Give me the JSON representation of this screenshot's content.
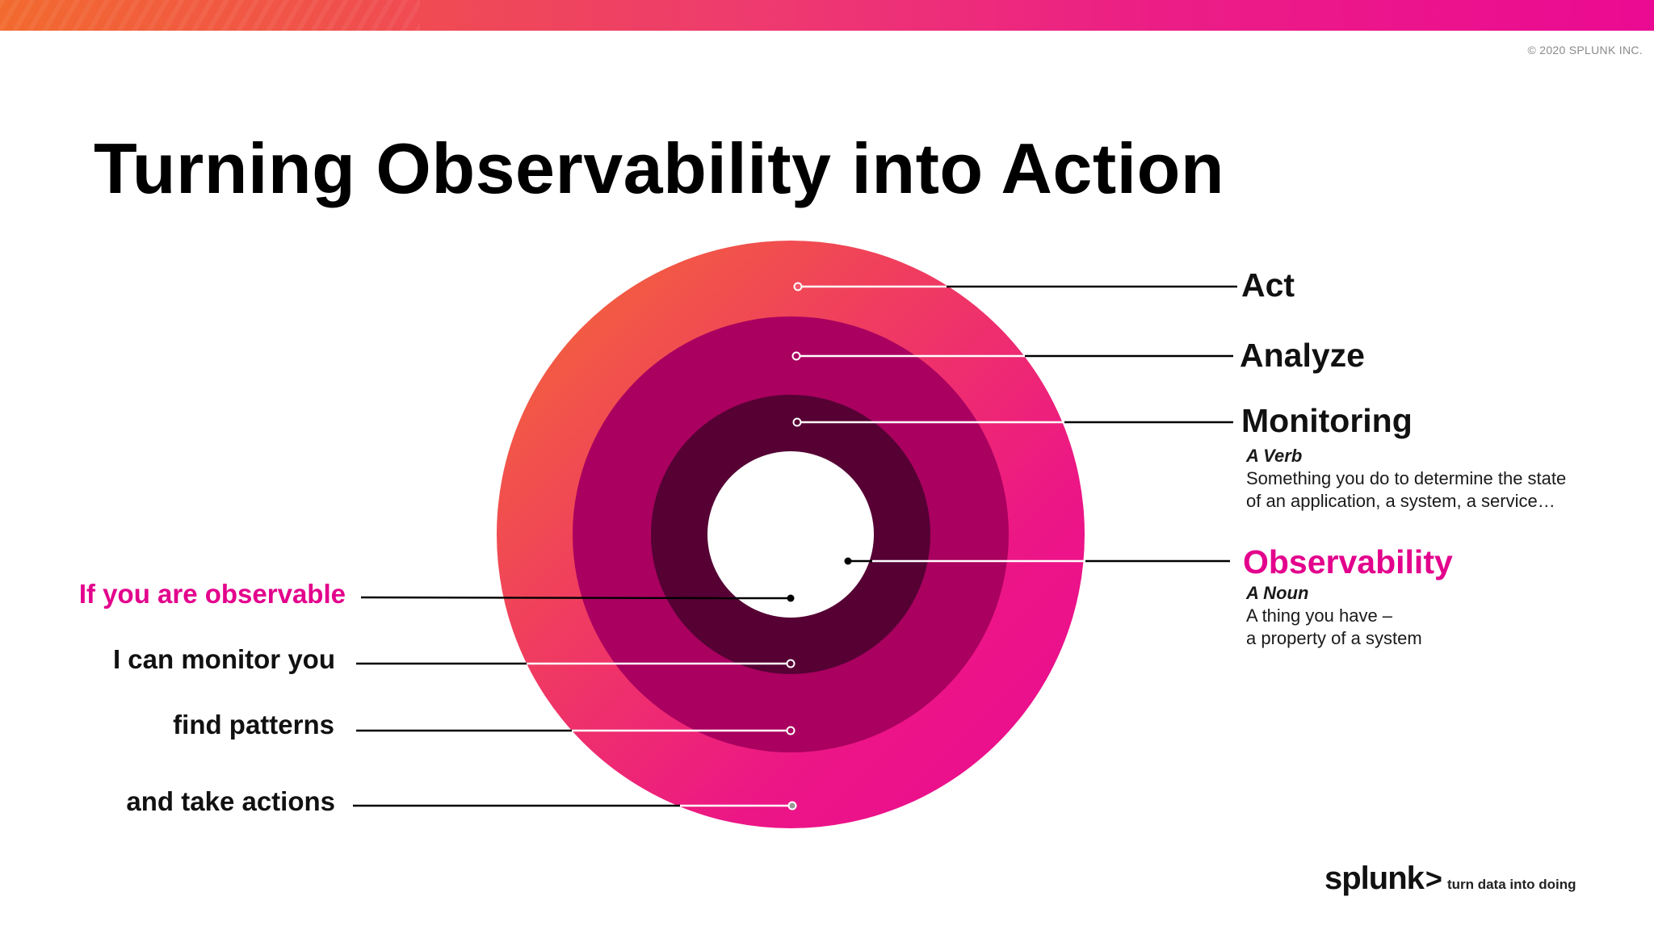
{
  "copyright": "© 2020 SPLUNK INC.",
  "title": "Turning Observability into Action",
  "diagram": {
    "rings": [
      {
        "name": "act",
        "color_from": "#f26a3c",
        "color_to": "#ec0a8c"
      },
      {
        "name": "analyze",
        "color": "#aa0060"
      },
      {
        "name": "monitoring",
        "color": "#560034"
      },
      {
        "name": "observability",
        "color": "#ffffff"
      }
    ],
    "right_labels": {
      "act": "Act",
      "analyze": "Analyze",
      "monitoring": "Monitoring",
      "observability": "Observability"
    },
    "monitoring_desc": {
      "pos": "A Verb",
      "line1": "Something you do to determine the state",
      "line2": "of an application, a system, a service…"
    },
    "observability_desc": {
      "pos": "A Noun",
      "line1": "A thing you have –",
      "line2": "a property of a system"
    },
    "left_labels": {
      "observable": "If you are observable",
      "monitor": "I can monitor you",
      "patterns": "find patterns",
      "actions": "and take actions"
    }
  },
  "logo": {
    "wordmark": "splunk",
    "chevron": ">",
    "tagline": "turn data into doing"
  }
}
